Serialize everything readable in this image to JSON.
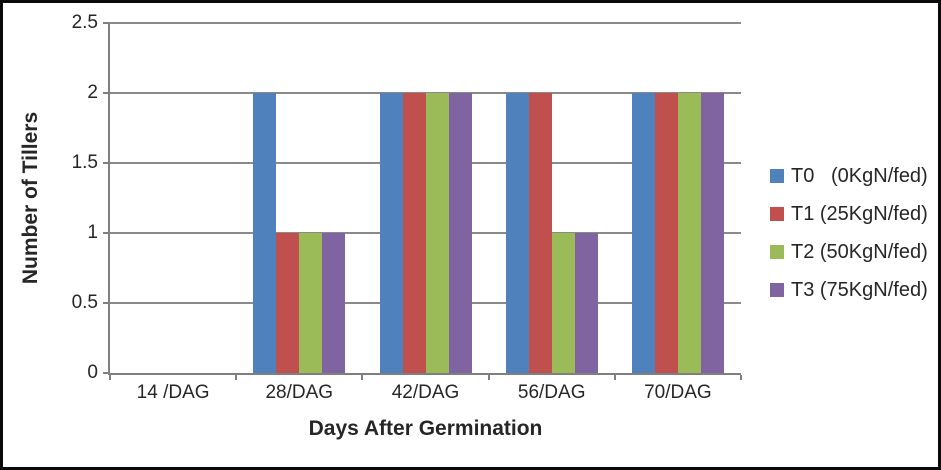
{
  "chart_data": {
    "type": "bar",
    "title": "",
    "categories": [
      "14 /DAG",
      "28/DAG",
      "42/DAG",
      "56/DAG",
      "70/DAG"
    ],
    "series": [
      {
        "name": "T0   (0KgN/fed)",
        "color": "#4F81BD",
        "values": [
          0,
          2,
          2,
          2,
          2
        ]
      },
      {
        "name": "T1 (25KgN/fed)",
        "color": "#C0504D",
        "values": [
          0,
          1,
          2,
          2,
          2
        ]
      },
      {
        "name": "T2 (50KgN/fed)",
        "color": "#9BBB59",
        "values": [
          0,
          1,
          2,
          1,
          2
        ]
      },
      {
        "name": "T3 (75KgN/fed)",
        "color": "#8064A2",
        "values": [
          0,
          1,
          2,
          1,
          2
        ]
      }
    ],
    "xlabel": "Days After Germination",
    "ylabel": "Number of Tillers",
    "ylim": [
      0,
      2.5
    ],
    "yticks": [
      {
        "value": 0,
        "label": "0"
      },
      {
        "value": 0.5,
        "label": "0.5"
      },
      {
        "value": 1,
        "label": "1"
      },
      {
        "value": 1.5,
        "label": "1.5"
      },
      {
        "value": 2,
        "label": "2"
      },
      {
        "value": 2.5,
        "label": "2.5"
      }
    ],
    "grid": "horizontal",
    "legend_position": "right"
  },
  "colors": {
    "gridline": "#8a8a8a",
    "axis": "#7f7f7f",
    "frame_border": "#0a0a0a",
    "text": "#262626",
    "background": "#ffffff"
  }
}
